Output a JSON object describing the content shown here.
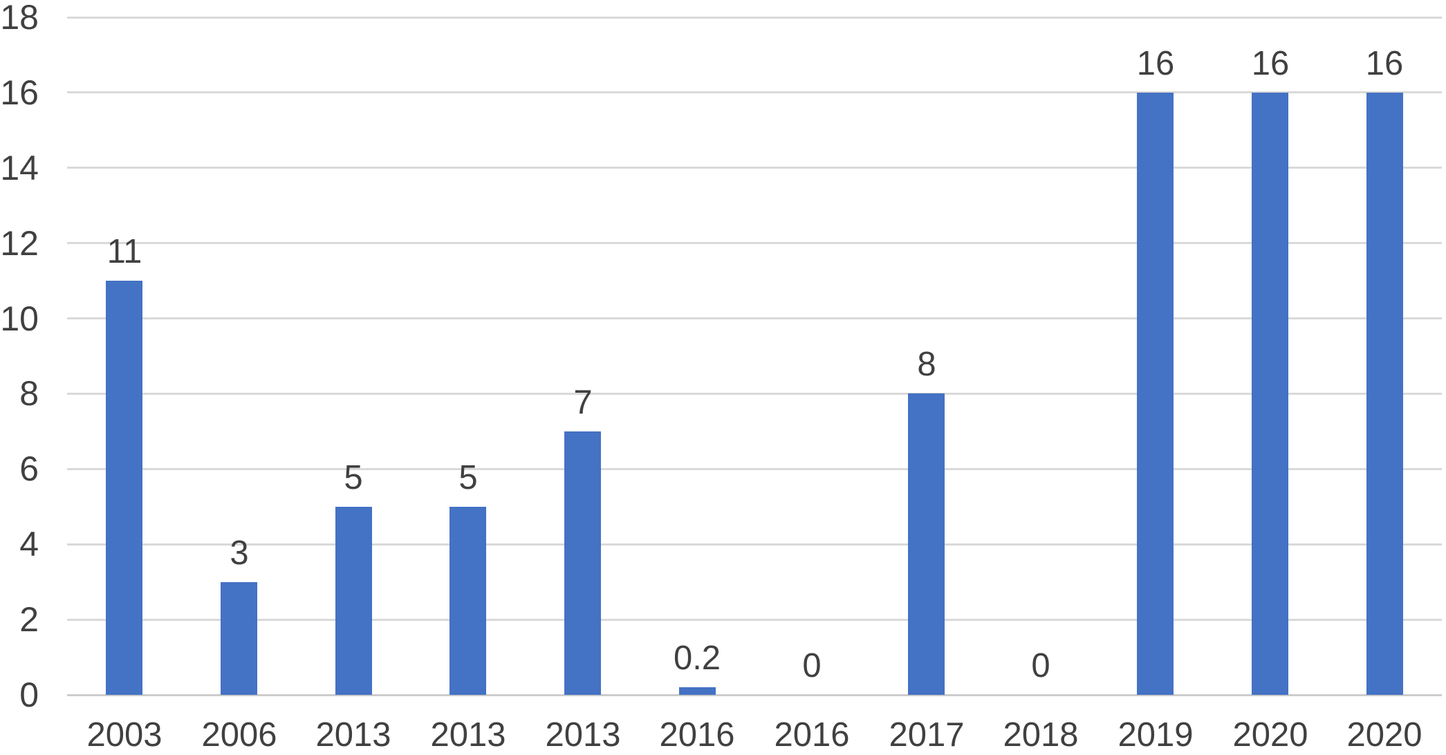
{
  "chart_data": {
    "type": "bar",
    "categories": [
      "2003",
      "2006",
      "2013",
      "2013",
      "2013",
      "2016",
      "2016",
      "2017",
      "2018",
      "2019",
      "2020",
      "2020"
    ],
    "values": [
      11,
      3,
      5,
      5,
      7,
      0.2,
      0,
      8,
      0,
      16,
      16,
      16
    ],
    "data_labels": [
      "11",
      "3",
      "5",
      "5",
      "7",
      "0.2",
      "0",
      "8",
      "0",
      "16",
      "16",
      "16"
    ],
    "y_ticks": [
      0,
      2,
      4,
      6,
      8,
      10,
      12,
      14,
      16,
      18
    ],
    "ylim": [
      0,
      18
    ],
    "grid": "horizontal",
    "legend": "none",
    "colors": {
      "bar": "#4472C4",
      "gridline": "#D9D9D9",
      "axis_line": "#CCCCCC",
      "text": "#404040"
    }
  }
}
